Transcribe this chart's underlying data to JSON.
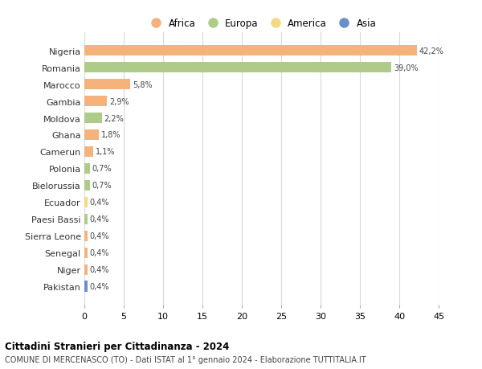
{
  "countries": [
    "Nigeria",
    "Romania",
    "Marocco",
    "Gambia",
    "Moldova",
    "Ghana",
    "Camerun",
    "Polonia",
    "Bielorussia",
    "Ecuador",
    "Paesi Bassi",
    "Sierra Leone",
    "Senegal",
    "Niger",
    "Pakistan"
  ],
  "values": [
    42.2,
    39.0,
    5.8,
    2.9,
    2.2,
    1.8,
    1.1,
    0.7,
    0.7,
    0.4,
    0.4,
    0.4,
    0.4,
    0.4,
    0.4
  ],
  "labels": [
    "42,2%",
    "39,0%",
    "5,8%",
    "2,9%",
    "2,2%",
    "1,8%",
    "1,1%",
    "0,7%",
    "0,7%",
    "0,4%",
    "0,4%",
    "0,4%",
    "0,4%",
    "0,4%",
    "0,4%"
  ],
  "continents": [
    "Africa",
    "Europa",
    "Africa",
    "Africa",
    "Europa",
    "Africa",
    "Africa",
    "Europa",
    "Europa",
    "America",
    "Europa",
    "Africa",
    "Africa",
    "Africa",
    "Asia"
  ],
  "colors": {
    "Africa": "#F5B27A",
    "Europa": "#AECB8A",
    "America": "#F5D980",
    "Asia": "#6B8EC9"
  },
  "legend_order": [
    "Africa",
    "Europa",
    "America",
    "Asia"
  ],
  "legend_colors": [
    "#F5B27A",
    "#AECB8A",
    "#F5D980",
    "#6B8EC9"
  ],
  "xlim": [
    0,
    45
  ],
  "xticks": [
    0,
    5,
    10,
    15,
    20,
    25,
    30,
    35,
    40,
    45
  ],
  "title": "Cittadini Stranieri per Cittadinanza - 2024",
  "subtitle": "COMUNE DI MERCENASCO (TO) - Dati ISTAT al 1° gennaio 2024 - Elaborazione TUTTITALIA.IT",
  "background_color": "#FFFFFF",
  "grid_color": "#D8D8D8",
  "bar_height": 0.65
}
